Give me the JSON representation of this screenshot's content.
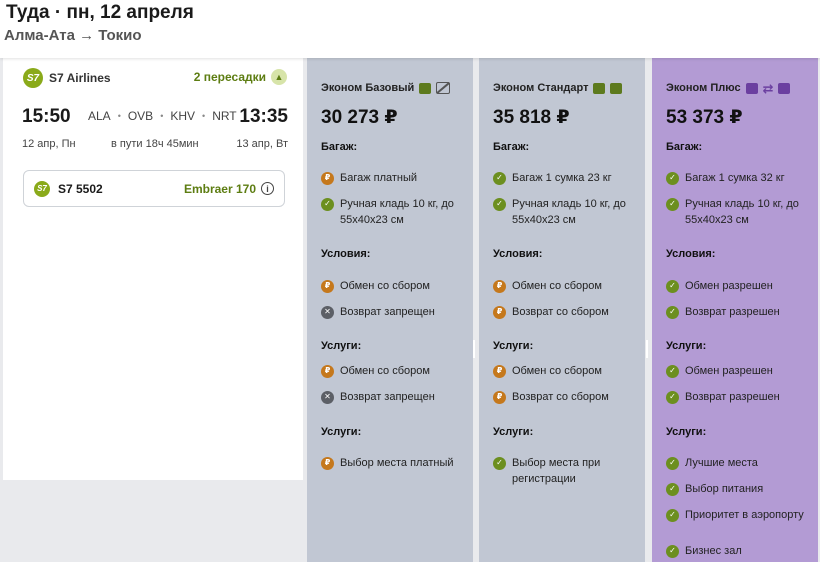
{
  "header": {
    "title": "Туда · пн, 12 апреля",
    "route": "Алма-Ата → Токио"
  },
  "flight": {
    "airline_logo": "S7",
    "airline": "S7 Airlines",
    "stops": "2 пересадки",
    "dep_time": "15:50",
    "arr_time": "13:35",
    "airports": [
      "ALA",
      "OVB",
      "KHV",
      "NRT"
    ],
    "dep_date": "12 апр, Пн",
    "duration": "в пути 18ч 45мин",
    "arr_date": "13 апр, Вт",
    "segment": {
      "logo": "S7",
      "code": "S7 5502",
      "aircraft": "Embraer 170",
      "info_icon": "i"
    }
  },
  "marks": {
    "pay": "₽",
    "ok": "✓",
    "no": "✕"
  },
  "tariffs": [
    {
      "name": "Эконом Базовый",
      "price": "30 273 ₽",
      "baggage_title": "Багаж:",
      "baggage": [
        {
          "icon": "pay",
          "text": "Багаж платный"
        },
        {
          "icon": "ok",
          "text": "Ручная кладь 10 кг, до 55x40x23 см"
        }
      ],
      "conditions_title": "Условия:",
      "conditions": [
        {
          "icon": "pay",
          "text": "Обмен со сбором"
        },
        {
          "icon": "no",
          "text": "Возврат запрещен"
        }
      ],
      "services1_title": "Услуги:",
      "services1": [
        {
          "icon": "pay",
          "text": "Обмен со сбором"
        },
        {
          "icon": "no",
          "text": "Возврат запрещен"
        }
      ],
      "services2_title": "Услуги:",
      "services2": [
        {
          "icon": "pay",
          "text": "Выбор места платный"
        }
      ]
    },
    {
      "name": "Эконом Стандарт",
      "price": "35 818 ₽",
      "baggage_title": "Багаж:",
      "baggage": [
        {
          "icon": "ok",
          "text": "Багаж 1 сумка 23 кг"
        },
        {
          "icon": "ok",
          "text": "Ручная кладь 10 кг, до 55x40x23 см"
        }
      ],
      "conditions_title": "Условия:",
      "conditions": [
        {
          "icon": "pay",
          "text": "Обмен со сбором"
        },
        {
          "icon": "pay",
          "text": "Возврат со сбором"
        }
      ],
      "services1_title": "Услуги:",
      "services1": [
        {
          "icon": "pay",
          "text": "Обмен со сбором"
        },
        {
          "icon": "pay",
          "text": "Возврат со сбором"
        }
      ],
      "services2_title": "Услуги:",
      "services2": [
        {
          "icon": "ok",
          "text": "Выбор места при регистрации"
        }
      ]
    },
    {
      "name": "Эконом Плюс",
      "price": "53 373 ₽",
      "baggage_title": "Багаж:",
      "baggage": [
        {
          "icon": "ok",
          "text": "Багаж 1 сумка 32 кг"
        },
        {
          "icon": "ok",
          "text": "Ручная кладь 10 кг, до 55x40x23 см"
        }
      ],
      "conditions_title": "Условия:",
      "conditions": [
        {
          "icon": "ok",
          "text": "Обмен разрешен"
        },
        {
          "icon": "ok",
          "text": "Возврат разрешен"
        }
      ],
      "services1_title": "Услуги:",
      "services1": [
        {
          "icon": "ok",
          "text": "Обмен разрешен"
        },
        {
          "icon": "ok",
          "text": "Возврат разрешен"
        }
      ],
      "services2_title": "Услуги:",
      "services2": [
        {
          "icon": "ok",
          "text": "Лучшие места"
        },
        {
          "icon": "ok",
          "text": "Выбор питания"
        },
        {
          "icon": "ok",
          "text": "Приоритет в аэропорту"
        },
        {
          "icon": "ok",
          "text": "Бизнес зал"
        }
      ]
    }
  ],
  "colors": {
    "basic": "#c1c7d3",
    "standard": "#c1c7d3",
    "plus": "#b39bd4",
    "accent": "#5d7d12"
  }
}
